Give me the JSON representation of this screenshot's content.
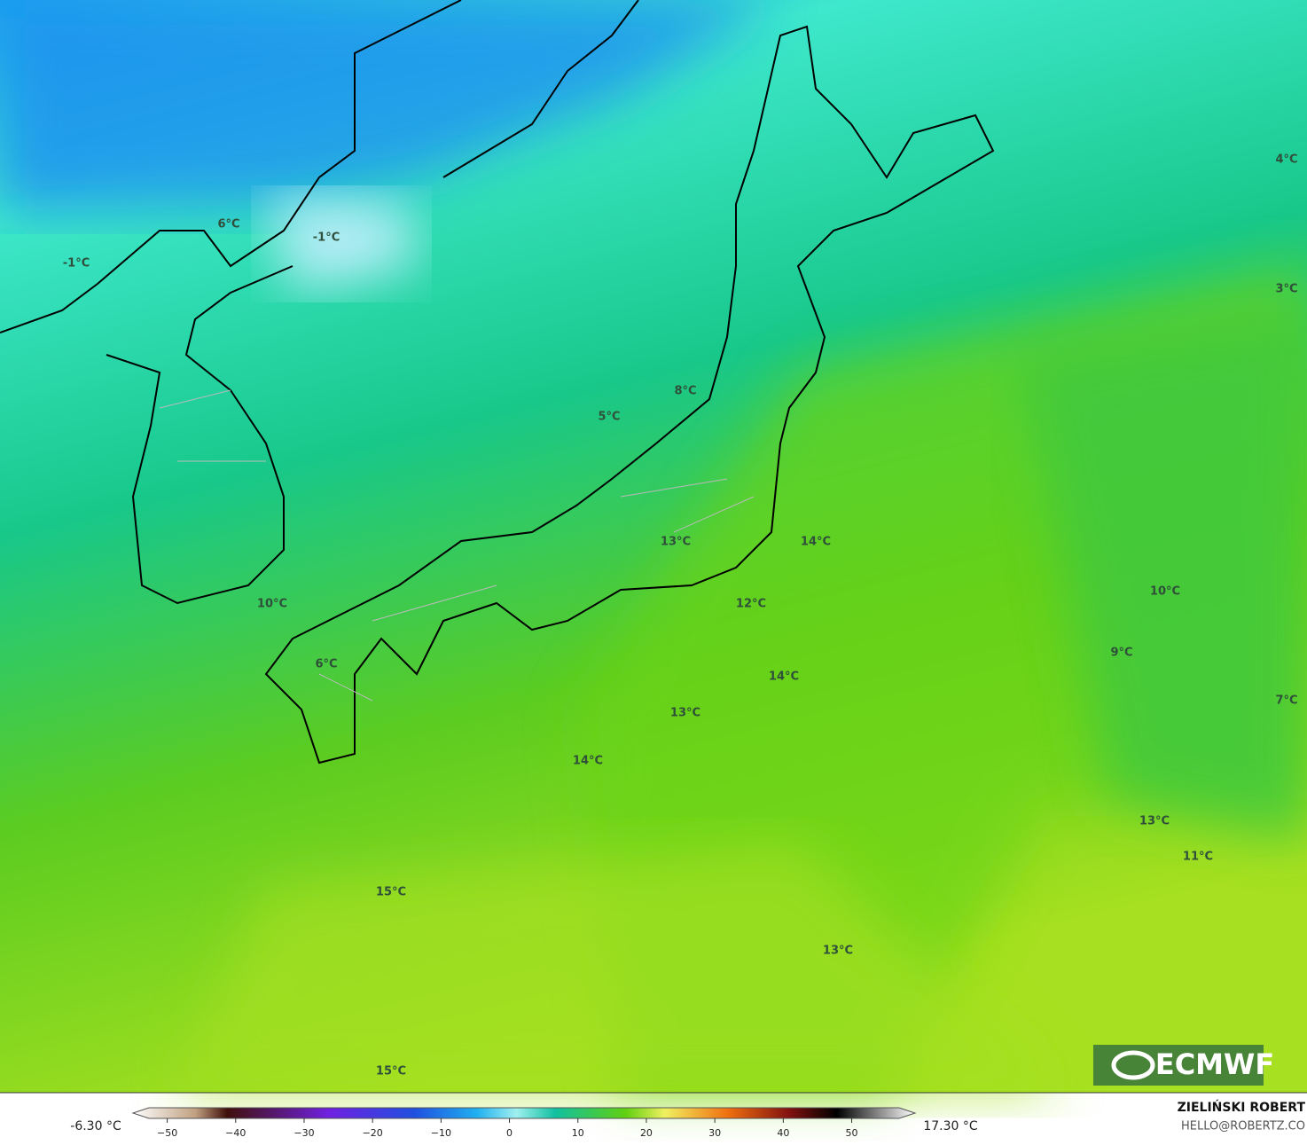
{
  "map": {
    "labels": [
      "6°C",
      "-1°C",
      "-1°C",
      "8°C",
      "5°C",
      "4°C",
      "3°C",
      "13°C",
      "14°C",
      "10°C",
      "12°C",
      "10°C",
      "9°C",
      "6°C",
      "14°C",
      "13°C",
      "7°C",
      "14°C",
      "13°C",
      "11°C",
      "15°C",
      "13°C",
      "15°C"
    ],
    "logo": "ECMWF"
  },
  "colorbar": {
    "lim": [
      -55,
      59
    ],
    "ticks": [
      {
        "value": -50,
        "label": "−50"
      },
      {
        "value": -40,
        "label": "−40"
      },
      {
        "value": -30,
        "label": "−30"
      },
      {
        "value": -20,
        "label": "−20"
      },
      {
        "value": -10,
        "label": "−10"
      },
      0,
      10,
      20,
      30,
      40,
      50
    ],
    "min_label": "-6.30 °C",
    "max_label": "17.30 °C"
  },
  "footer": {
    "author": "ZIELIŃSKI ROBERT",
    "email": "HELLO@ROBERTZ.CO"
  }
}
